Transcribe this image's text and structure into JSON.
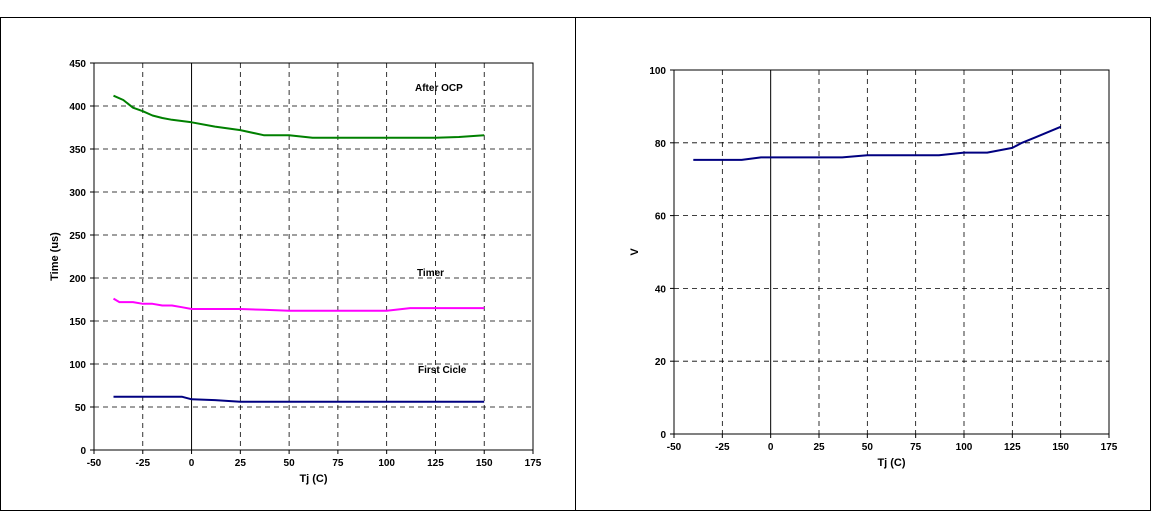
{
  "chart_data": [
    {
      "type": "line",
      "title": "",
      "xlabel": "Tj (C)",
      "ylabel": "Time (us)",
      "xlim": [
        -50,
        175
      ],
      "ylim": [
        0,
        450
      ],
      "xticks": [
        -50,
        -25,
        0,
        25,
        50,
        75,
        100,
        125,
        150,
        175
      ],
      "yticks": [
        0,
        50,
        100,
        150,
        200,
        250,
        300,
        350,
        400,
        450
      ],
      "grid": true,
      "series": [
        {
          "name": "After OCP",
          "color": "#008000",
          "x": [
            -40,
            -35,
            -30,
            -25,
            -20,
            -15,
            -10,
            0,
            12,
            25,
            37,
            50,
            62,
            75,
            87,
            100,
            112,
            125,
            137,
            150
          ],
          "y": [
            412,
            407,
            398,
            394,
            389,
            386,
            384,
            381,
            376,
            372,
            366,
            366,
            363,
            363,
            363,
            363,
            363,
            363,
            364,
            366
          ]
        },
        {
          "name": "Timer",
          "color": "#ff00ff",
          "x": [
            -40,
            -37,
            -35,
            -30,
            -25,
            -20,
            -15,
            -10,
            -5,
            0,
            12,
            25,
            37,
            50,
            62,
            75,
            87,
            100,
            112,
            125,
            137,
            150
          ],
          "y": [
            176,
            172,
            172,
            172,
            170,
            170,
            168,
            168,
            166,
            164,
            164,
            164,
            163,
            162,
            162,
            162,
            162,
            162,
            165,
            165,
            165,
            165
          ]
        },
        {
          "name": "First Cicle",
          "color": "#000080",
          "x": [
            -40,
            -25,
            -10,
            -5,
            0,
            12,
            25,
            37,
            50,
            62,
            75,
            87,
            100,
            112,
            125,
            137,
            150
          ],
          "y": [
            62,
            62,
            62,
            62,
            59,
            58,
            56,
            56,
            56,
            56,
            56,
            56,
            56,
            56,
            56,
            56,
            56
          ]
        }
      ]
    },
    {
      "type": "line",
      "title": "",
      "xlabel": "Tj (C)",
      "ylabel": "V",
      "xlim": [
        -50,
        175
      ],
      "ylim": [
        0,
        100
      ],
      "xticks": [
        -50,
        -25,
        0,
        25,
        50,
        75,
        100,
        125,
        150,
        175
      ],
      "yticks": [
        0,
        20,
        40,
        60,
        80,
        100
      ],
      "grid": true,
      "series": [
        {
          "color": "#000080",
          "x": [
            -40,
            -25,
            -15,
            -5,
            0,
            12,
            25,
            37,
            50,
            62,
            75,
            87,
            100,
            112,
            125,
            130,
            137,
            150
          ],
          "y": [
            75.3,
            75.3,
            75.3,
            76,
            76,
            76,
            76,
            76,
            76.6,
            76.6,
            76.6,
            76.6,
            77.3,
            77.3,
            78.6,
            80,
            81.5,
            84.4
          ]
        }
      ]
    }
  ]
}
